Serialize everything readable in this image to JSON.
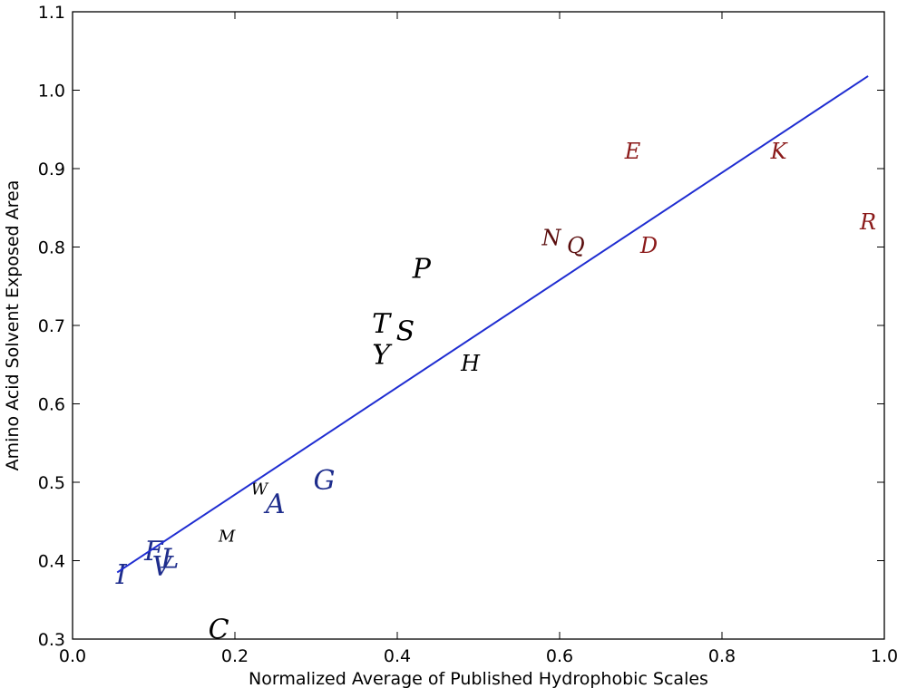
{
  "chart_data": {
    "type": "scatter",
    "title": "",
    "xlabel": "Normalized Average of Published Hydrophobic Scales",
    "ylabel": "Amino Acid Solvent Exposed Area",
    "xlim": [
      0.0,
      1.0
    ],
    "ylim": [
      0.3,
      1.1
    ],
    "xticks": [
      "0.0",
      "0.2",
      "0.4",
      "0.6",
      "0.8",
      "1.0"
    ],
    "yticks": [
      "0.3",
      "0.4",
      "0.5",
      "0.6",
      "0.7",
      "0.8",
      "0.9",
      "1.0",
      "1.1"
    ],
    "grid": false,
    "points": [
      {
        "label": "I",
        "x": 0.06,
        "y": 0.38,
        "color": "#1e2d8c",
        "size": "large"
      },
      {
        "label": "F",
        "x": 0.1,
        "y": 0.41,
        "color": "#1e2d8c",
        "size": "large"
      },
      {
        "label": "V",
        "x": 0.11,
        "y": 0.39,
        "color": "#1e2d8c",
        "size": "large"
      },
      {
        "label": "L",
        "x": 0.12,
        "y": 0.4,
        "color": "#1e2d8c",
        "size": "large"
      },
      {
        "label": "M",
        "x": 0.19,
        "y": 0.43,
        "color": "#000000",
        "size": "small"
      },
      {
        "label": "C",
        "x": 0.18,
        "y": 0.31,
        "color": "#000000",
        "size": "large"
      },
      {
        "label": "W",
        "x": 0.23,
        "y": 0.49,
        "color": "#000000",
        "size": "small"
      },
      {
        "label": "A",
        "x": 0.25,
        "y": 0.47,
        "color": "#1e2d8c",
        "size": "large"
      },
      {
        "label": "G",
        "x": 0.31,
        "y": 0.5,
        "color": "#1e2d8c",
        "size": "large"
      },
      {
        "label": "T",
        "x": 0.38,
        "y": 0.7,
        "color": "#000000",
        "size": "large"
      },
      {
        "label": "S",
        "x": 0.41,
        "y": 0.69,
        "color": "#000000",
        "size": "large"
      },
      {
        "label": "Y",
        "x": 0.38,
        "y": 0.66,
        "color": "#000000",
        "size": "large"
      },
      {
        "label": "P",
        "x": 0.43,
        "y": 0.77,
        "color": "#000000",
        "size": "large"
      },
      {
        "label": "H",
        "x": 0.49,
        "y": 0.65,
        "color": "#000000",
        "size": "medium"
      },
      {
        "label": "N",
        "x": 0.59,
        "y": 0.81,
        "color": "#5a0d0d",
        "size": "medium"
      },
      {
        "label": "Q",
        "x": 0.62,
        "y": 0.8,
        "color": "#5a0d0d",
        "size": "medium"
      },
      {
        "label": "D",
        "x": 0.71,
        "y": 0.8,
        "color": "#8b1a1a",
        "size": "medium"
      },
      {
        "label": "E",
        "x": 0.69,
        "y": 0.92,
        "color": "#8b1a1a",
        "size": "medium"
      },
      {
        "label": "K",
        "x": 0.87,
        "y": 0.92,
        "color": "#8b1a1a",
        "size": "medium"
      },
      {
        "label": "R",
        "x": 0.98,
        "y": 0.83,
        "color": "#8b1a1a",
        "size": "medium"
      }
    ],
    "fit_line": {
      "x": [
        0.055,
        0.98
      ],
      "y": [
        0.385,
        1.018
      ],
      "color": "#1f2dd1"
    }
  }
}
